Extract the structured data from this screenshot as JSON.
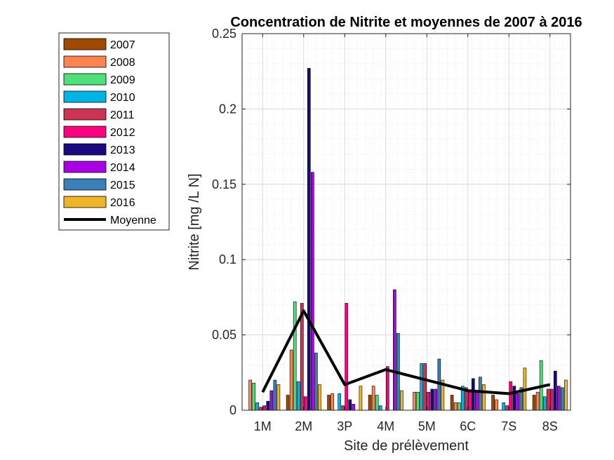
{
  "chart_data": {
    "type": "bar",
    "title": "Concentration de Nitrite et moyennes de 2007 à 2016",
    "xlabel": "Site de prélèvement",
    "ylabel": "Nitrite [mg /L N]",
    "ylim": [
      0,
      0.25
    ],
    "yticks": [
      "0",
      "0.05",
      "0.1",
      "0.15",
      "0.2",
      "0.25"
    ],
    "yticks_values": [
      0,
      0.05,
      0.1,
      0.15,
      0.2,
      0.25
    ],
    "grid": true,
    "legend_position": "outside-top-left",
    "categories": [
      "1M",
      "2M",
      "3P",
      "4M",
      "5M",
      "6C",
      "7S",
      "8S"
    ],
    "series": [
      {
        "name": "2007",
        "color": "#a04a00",
        "values": [
          0,
          0.01,
          0.01,
          0.01,
          0,
          0.01,
          0.01,
          0.01
        ]
      },
      {
        "name": "2008",
        "color": "#ff8450",
        "values": [
          0.02,
          0.04,
          0.011,
          0.016,
          0.012,
          0.005,
          0.007,
          0.012
        ]
      },
      {
        "name": "2009",
        "color": "#50e07a",
        "values": [
          0.018,
          0.072,
          0,
          0.01,
          0.012,
          0.005,
          0,
          0.033
        ]
      },
      {
        "name": "2010",
        "color": "#00b4e6",
        "values": [
          0.005,
          0.019,
          0.011,
          0.003,
          0.031,
          0.016,
          0.005,
          0.009
        ]
      },
      {
        "name": "2011",
        "color": "#cc3355",
        "values": [
          0.002,
          0.071,
          0.003,
          0,
          0.031,
          0.015,
          0.003,
          0.014
        ]
      },
      {
        "name": "2012",
        "color": "#ff0080",
        "values": [
          0.003,
          0.009,
          0.071,
          0.029,
          0.012,
          0.012,
          0.019,
          0.014
        ]
      },
      {
        "name": "2013",
        "color": "#1a0a80",
        "values": [
          0.006,
          0.227,
          0.007,
          0,
          0.014,
          0.021,
          0.016,
          0.026
        ]
      },
      {
        "name": "2014",
        "color": "#aa00e6",
        "values": [
          0.013,
          0.158,
          0.004,
          0.08,
          0.014,
          0.013,
          0.011,
          0.016
        ]
      },
      {
        "name": "2015",
        "color": "#3a7fb8",
        "values": [
          0.02,
          0.038,
          0,
          0.051,
          0.034,
          0.022,
          0.015,
          0.015
        ]
      },
      {
        "name": "2016",
        "color": "#f0b428",
        "values": [
          0.017,
          0.017,
          0.016,
          0.013,
          0.02,
          0.017,
          0.028,
          0.02
        ]
      }
    ],
    "mean_line": {
      "name": "Moyenne",
      "color": "#000000",
      "values": [
        0.012,
        0.066,
        0.017,
        0.027,
        0.02,
        0.013,
        0.011,
        0.017
      ]
    }
  }
}
